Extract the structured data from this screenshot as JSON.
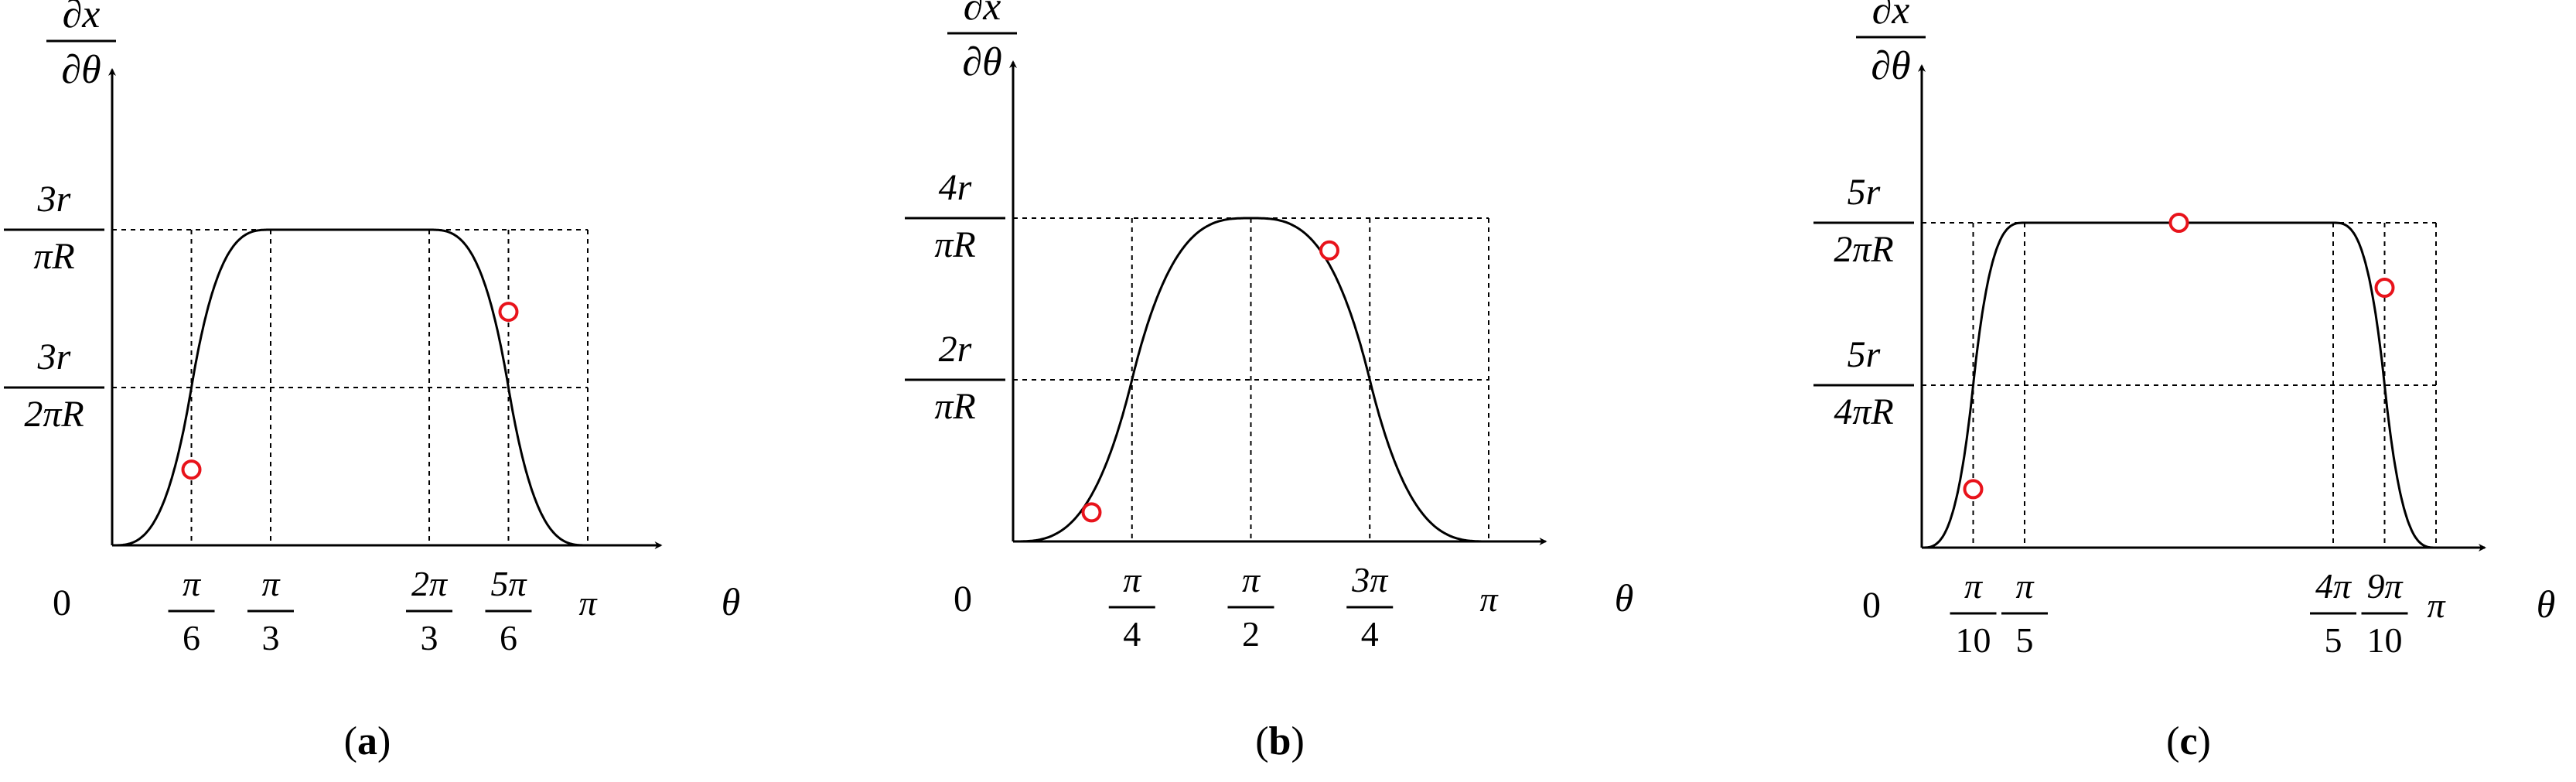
{
  "figure": {
    "panels": [
      {
        "id": "a",
        "caption": "a",
        "axis": {
          "y_label_num": "∂x",
          "y_label_den": "∂θ",
          "x_label": "θ",
          "origin": "0"
        },
        "y_ticks": [
          {
            "num": "3r",
            "den": "πR",
            "level": 1.0
          },
          {
            "num": "3r",
            "den": "2πR",
            "level": 0.5
          }
        ],
        "x_ticks": [
          {
            "kind": "frac",
            "num": "π",
            "den": "6",
            "frac": 0.1667
          },
          {
            "kind": "frac",
            "num": "π",
            "den": "3",
            "frac": 0.3333
          },
          {
            "kind": "frac",
            "num": "2π",
            "den": "3",
            "frac": 0.6667
          },
          {
            "kind": "frac",
            "num": "5π",
            "den": "6",
            "frac": 0.8333
          },
          {
            "kind": "plain",
            "text": "π",
            "frac": 1.0
          }
        ],
        "curve": {
          "steep_center_left": 0.1667,
          "steep_center_right": 0.8333,
          "plateau_start": 0.3333,
          "plateau_end": 0.6667
        },
        "markers": [
          {
            "frac": 0.1667,
            "level": 0.24
          },
          {
            "frac": 0.8333,
            "level": 0.74
          }
        ]
      },
      {
        "id": "b",
        "caption": "b",
        "axis": {
          "y_label_num": "∂x",
          "y_label_den": "∂θ",
          "x_label": "θ",
          "origin": "0"
        },
        "y_ticks": [
          {
            "num": "4r",
            "den": "πR",
            "level": 1.0
          },
          {
            "num": "2r",
            "den": "πR",
            "level": 0.5
          }
        ],
        "x_ticks": [
          {
            "kind": "frac",
            "num": "π",
            "den": "4",
            "frac": 0.25
          },
          {
            "kind": "frac",
            "num": "π",
            "den": "2",
            "frac": 0.5
          },
          {
            "kind": "frac",
            "num": "3π",
            "den": "4",
            "frac": 0.75
          },
          {
            "kind": "plain",
            "text": "π",
            "frac": 1.0
          }
        ],
        "curve": {
          "steep_center_left": 0.25,
          "steep_center_right": 0.75,
          "plateau_start": 0.5,
          "plateau_end": 0.5
        },
        "markers": [
          {
            "frac": 0.165,
            "level": 0.09
          },
          {
            "frac": 0.665,
            "level": 0.9
          }
        ]
      },
      {
        "id": "c",
        "caption": "c",
        "axis": {
          "y_label_num": "∂x",
          "y_label_den": "∂θ",
          "x_label": "θ",
          "origin": "0"
        },
        "y_ticks": [
          {
            "num": "5r",
            "den": "2πR",
            "level": 1.0
          },
          {
            "num": "5r",
            "den": "4πR",
            "level": 0.5
          }
        ],
        "x_ticks": [
          {
            "kind": "frac",
            "num": "π",
            "den": "10",
            "frac": 0.1
          },
          {
            "kind": "frac",
            "num": "π",
            "den": "5",
            "frac": 0.2
          },
          {
            "kind": "frac",
            "num": "4π",
            "den": "5",
            "frac": 0.8
          },
          {
            "kind": "frac",
            "num": "9π",
            "den": "10",
            "frac": 0.9
          },
          {
            "kind": "plain",
            "text": "π",
            "frac": 1.0
          }
        ],
        "curve": {
          "steep_center_left": 0.1,
          "steep_center_right": 0.9,
          "plateau_start": 0.2,
          "plateau_end": 0.8
        },
        "markers": [
          {
            "frac": 0.1,
            "level": 0.18
          },
          {
            "frac": 0.5,
            "level": 1.0
          },
          {
            "frac": 0.9,
            "level": 0.8
          }
        ]
      }
    ],
    "marker_color": "#e8131b",
    "line_color": "#000000"
  }
}
